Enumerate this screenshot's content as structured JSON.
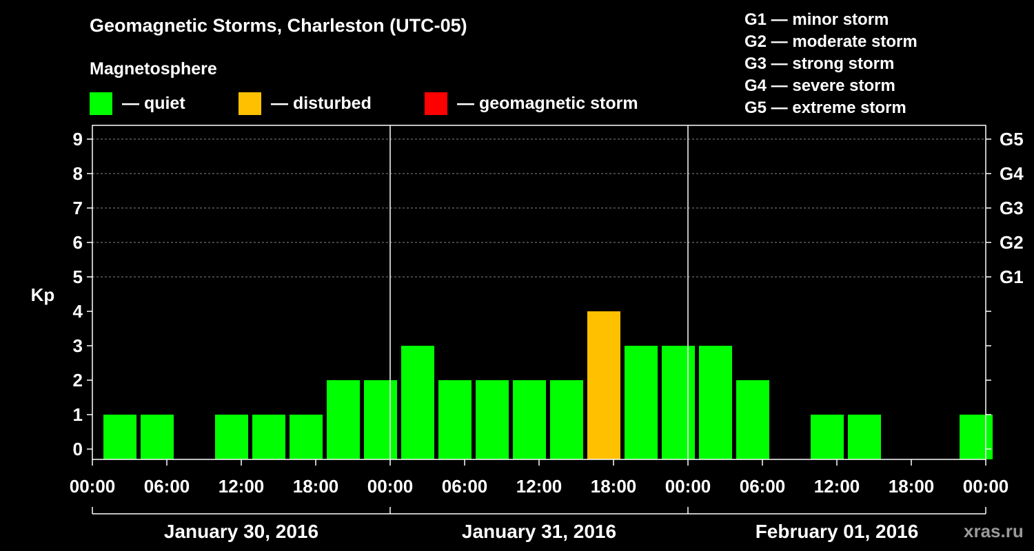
{
  "title": "Geomagnetic Storms, Charleston (UTC-05)",
  "magnetosphere": {
    "heading": "Magnetosphere",
    "items": [
      {
        "label": "— quiet",
        "color": "#00ff00"
      },
      {
        "label": "— disturbed",
        "color": "#ffc000"
      },
      {
        "label": "— geomagnetic storm",
        "color": "#ff0000"
      }
    ]
  },
  "storm_scale": [
    "G1 — minor storm",
    "G2 — moderate storm",
    "G3 — strong storm",
    "G4 — severe storm",
    "G5 — extreme storm"
  ],
  "watermark": "xras.ru",
  "chart_data": {
    "type": "bar",
    "title": "Geomagnetic Storms, Charleston (UTC-05)",
    "ylabel": "Kp",
    "ylim": [
      0,
      9
    ],
    "y_ticks": [
      "0",
      "1",
      "2",
      "3",
      "4",
      "5",
      "6",
      "7",
      "8",
      "9"
    ],
    "right_axis": {
      "5": "G1",
      "6": "G2",
      "7": "G3",
      "8": "G4",
      "9": "G5"
    },
    "x_tick_labels": [
      "00:00",
      "06:00",
      "12:00",
      "18:00",
      "00:00",
      "06:00",
      "12:00",
      "18:00",
      "00:00",
      "06:00",
      "12:00",
      "18:00",
      "00:00"
    ],
    "days": [
      "January 30, 2016",
      "January 31, 2016",
      "February 01, 2016"
    ],
    "interval_hours": 3,
    "start_offset_hours": 1,
    "values": [
      1,
      1,
      0,
      1,
      1,
      1,
      2,
      2,
      3,
      2,
      2,
      2,
      2,
      4,
      3,
      3,
      3,
      2,
      0,
      1,
      1,
      0,
      0,
      1
    ],
    "status": [
      "quiet",
      "quiet",
      "quiet",
      "quiet",
      "quiet",
      "quiet",
      "quiet",
      "quiet",
      "quiet",
      "quiet",
      "quiet",
      "quiet",
      "quiet",
      "disturbed",
      "quiet",
      "quiet",
      "quiet",
      "quiet",
      "quiet",
      "quiet",
      "quiet",
      "quiet",
      "quiet",
      "quiet"
    ],
    "colors": {
      "quiet": "#00ff00",
      "disturbed": "#ffc000",
      "storm": "#ff0000"
    },
    "grid": "dashed horizontal lines at 5-9"
  }
}
